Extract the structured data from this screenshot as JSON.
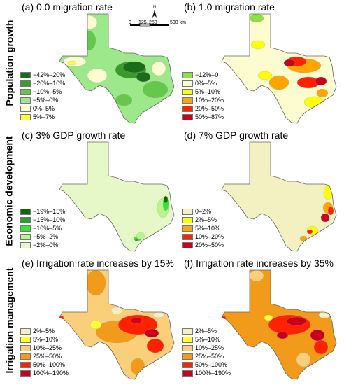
{
  "rows": [
    {
      "label": "Population growth"
    },
    {
      "label": "Economic development"
    },
    {
      "label": "Irrigation management"
    }
  ],
  "panels": [
    {
      "title": "(a) 0.0 migration rate",
      "legend": [
        {
          "label": "−42%–20%",
          "color": "#1a6b1a"
        },
        {
          "label": "−20%–10%",
          "color": "#3a9a2a"
        },
        {
          "label": "−10%–5%",
          "color": "#66c84a"
        },
        {
          "label": "−5%–0%",
          "color": "#9ce88a"
        },
        {
          "label": "0%–5%",
          "color": "#fdfbd0"
        },
        {
          "label": "5%–7%",
          "color": "#ffff33"
        }
      ]
    },
    {
      "title": "(b) 1.0 migration rate",
      "legend": [
        {
          "label": "−12%–0",
          "color": "#8edf3f"
        },
        {
          "label": "0%–5%",
          "color": "#fdfbd0"
        },
        {
          "label": "5%–10%",
          "color": "#ffff00"
        },
        {
          "label": "10%–20%",
          "color": "#ffa500"
        },
        {
          "label": "20%–50%",
          "color": "#ff2200"
        },
        {
          "label": "50%–87%",
          "color": "#c8001e"
        }
      ]
    },
    {
      "title": "(c) 3% GDP growth rate",
      "legend": [
        {
          "label": "−19%–15%",
          "color": "#0a6b0a"
        },
        {
          "label": "−15%–10%",
          "color": "#2aa02a"
        },
        {
          "label": "−10%–5%",
          "color": "#33e633"
        },
        {
          "label": "−5%–2%",
          "color": "#b8f58a"
        },
        {
          "label": "−2%–0%",
          "color": "#e6f7c8"
        }
      ]
    },
    {
      "title": "(d) 7% GDP growth rate",
      "legend": [
        {
          "label": "0–2%",
          "color": "#f3f0c2"
        },
        {
          "label": "2%–5%",
          "color": "#ffff00"
        },
        {
          "label": "5%–10%",
          "color": "#ffa500"
        },
        {
          "label": "10%–20%",
          "color": "#ff2200"
        },
        {
          "label": "20%–50%",
          "color": "#cc001e"
        }
      ]
    },
    {
      "title": "(e) Irrigation rate increases by 15%",
      "legend": [
        {
          "label": "2%–5%",
          "color": "#f8efc0"
        },
        {
          "label": "5%–10%",
          "color": "#ffff33"
        },
        {
          "label": "10%–25%",
          "color": "#f9cf7a"
        },
        {
          "label": "25%–50%",
          "color": "#f29a1a"
        },
        {
          "label": "50%–100%",
          "color": "#ff2200"
        },
        {
          "label": "100%–190%",
          "color": "#c8001e"
        }
      ]
    },
    {
      "title": "(f) Irrigation rate increases by 35%",
      "legend": [
        {
          "label": "2%–5%",
          "color": "#f8efc0"
        },
        {
          "label": "5%–10%",
          "color": "#ffff33"
        },
        {
          "label": "10%–25%",
          "color": "#f9cf7a"
        },
        {
          "label": "25%–50%",
          "color": "#f29a1a"
        },
        {
          "label": "50%–100%",
          "color": "#ff2200"
        },
        {
          "label": "100%–190%",
          "color": "#c8001e"
        }
      ]
    }
  ],
  "north_arrow": {
    "label": "N"
  },
  "scale_bar": {
    "ticks": [
      "0",
      "125",
      "250",
      "500 km"
    ]
  }
}
